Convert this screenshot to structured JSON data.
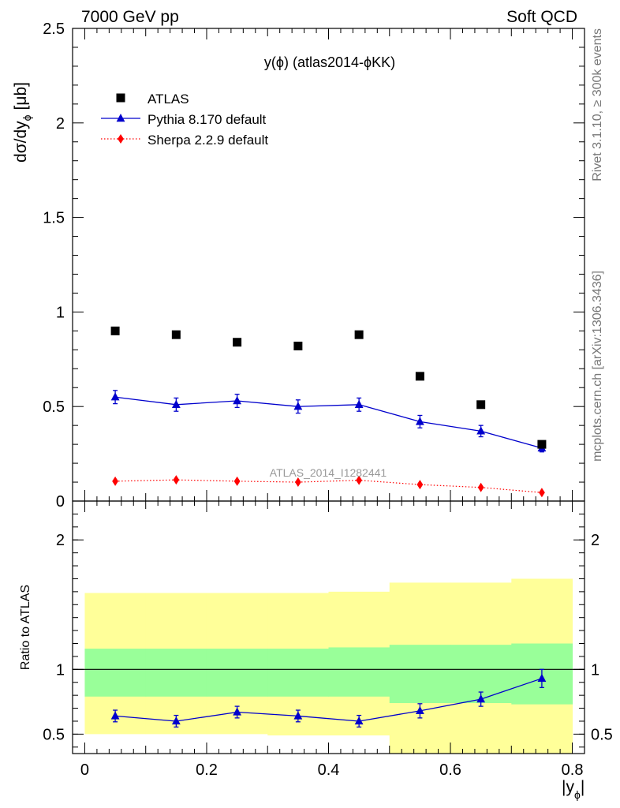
{
  "header": {
    "left": "7000 GeV pp",
    "right": "Soft QCD"
  },
  "side_text": {
    "rivet": "Rivet 3.1.10, ≥ 300k events",
    "mcplots": "mcplots.cern.ch [arXiv:1306.3436]"
  },
  "watermark": "ATLAS_2014_I1282441",
  "colors": {
    "atlas": "#000000",
    "pythia": "#0000cc",
    "sherpa": "#ff0000",
    "band_inner": "#99ff99",
    "band_outer": "#ffff99"
  },
  "chart_data": [
    {
      "id": "main",
      "type": "scatter",
      "title": "y(ϕ) (atlas2014-ϕKK)",
      "ylabel_main": "dσ/dy",
      "ylabel_sub": "ϕ",
      "ylabel_unit": "[μb]",
      "ylim": [
        0,
        2.5
      ],
      "yticks": [
        0,
        0.5,
        1,
        1.5,
        2,
        2.5
      ],
      "ytick_labels": [
        "0",
        "0.5",
        "1",
        "1.5",
        "2",
        "2.5"
      ],
      "xlim": [
        -0.02,
        0.82
      ],
      "x": [
        0.05,
        0.15,
        0.25,
        0.35,
        0.45,
        0.55,
        0.65,
        0.75
      ],
      "legend": {
        "position": "top-left"
      },
      "series": [
        {
          "name": "ATLAS",
          "marker": "square",
          "values": [
            0.9,
            0.88,
            0.84,
            0.82,
            0.88,
            0.66,
            0.51,
            0.3
          ]
        },
        {
          "name": "Pythia 8.170 default",
          "marker": "triangle",
          "values": [
            0.55,
            0.51,
            0.53,
            0.5,
            0.51,
            0.42,
            0.37,
            0.28
          ],
          "errors": [
            0.035,
            0.035,
            0.035,
            0.035,
            0.035,
            0.033,
            0.03,
            0.02
          ]
        },
        {
          "name": "Sherpa 2.2.9 default",
          "marker": "diamond",
          "values": [
            0.105,
            0.112,
            0.105,
            0.1,
            0.11,
            0.087,
            0.072,
            0.045
          ]
        }
      ]
    },
    {
      "id": "ratio",
      "type": "line",
      "ylabel": "Ratio to ATLAS",
      "xlabel_main": "|y",
      "xlabel_sub": "ϕ",
      "xlabel_end": "|",
      "ylim": [
        0.35,
        2.3
      ],
      "yticks": [
        0.5,
        1,
        2
      ],
      "ytick_labels": [
        "0.5",
        "1",
        "2"
      ],
      "xlim": [
        -0.02,
        0.82
      ],
      "xticks": [
        0,
        0.2,
        0.4,
        0.6,
        0.8
      ],
      "xtick_labels": [
        "0",
        "0.2",
        "0.4",
        "0.6",
        "0.8"
      ],
      "x": [
        0.05,
        0.15,
        0.25,
        0.35,
        0.45,
        0.55,
        0.65,
        0.75
      ],
      "reference_line": 1,
      "bands": {
        "edges": [
          0,
          0.1,
          0.2,
          0.3,
          0.4,
          0.5,
          0.6,
          0.7,
          0.8
        ],
        "outer_low": [
          0.5,
          0.5,
          0.5,
          0.49,
          0.49,
          0.35,
          0.35,
          0.35
        ],
        "outer_high": [
          1.59,
          1.59,
          1.59,
          1.59,
          1.6,
          1.67,
          1.67,
          1.7
        ],
        "inner_low": [
          0.79,
          0.79,
          0.79,
          0.79,
          0.79,
          0.74,
          0.74,
          0.73
        ],
        "inner_high": [
          1.16,
          1.16,
          1.16,
          1.16,
          1.17,
          1.19,
          1.19,
          1.2
        ]
      },
      "series": [
        {
          "name": "Pythia 8.170 default",
          "marker": "triangle",
          "values": [
            0.64,
            0.6,
            0.67,
            0.64,
            0.6,
            0.68,
            0.77,
            0.93
          ],
          "errors": [
            0.045,
            0.045,
            0.045,
            0.045,
            0.045,
            0.055,
            0.055,
            0.07
          ]
        }
      ]
    }
  ]
}
